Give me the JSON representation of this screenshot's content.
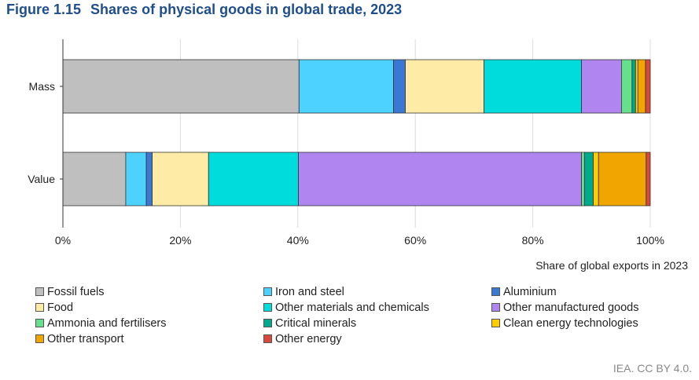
{
  "figure": {
    "number": "Figure 1.15",
    "title": "Shares of physical goods in global trade, 2023",
    "source": "IEA. CC BY 4.0."
  },
  "chart_data": {
    "type": "bar",
    "orientation": "horizontal",
    "stacked": true,
    "categories": [
      "Mass",
      "Value"
    ],
    "xlabel": "Share of global exports in 2023",
    "xlim": [
      0,
      100
    ],
    "xticks": [
      "0%",
      "20%",
      "40%",
      "60%",
      "80%",
      "100%"
    ],
    "grid": true,
    "legend_position": "bottom",
    "series": [
      {
        "name": "Fossil fuels",
        "color": "#bfbfbf",
        "values": [
          40.2,
          10.7
        ]
      },
      {
        "name": "Iron and steel",
        "color": "#4dd2ff",
        "values": [
          16.1,
          3.5
        ]
      },
      {
        "name": "Aluminium",
        "color": "#3a78d4",
        "values": [
          2.0,
          1.0
        ]
      },
      {
        "name": "Food",
        "color": "#fdeba6",
        "values": [
          13.4,
          9.6
        ]
      },
      {
        "name": "Other materials and chemicals",
        "color": "#00dcdc",
        "values": [
          16.6,
          15.3
        ]
      },
      {
        "name": "Other manufactured goods",
        "color": "#b085f0",
        "values": [
          6.8,
          48.2
        ]
      },
      {
        "name": "Ammonia and fertilisers",
        "color": "#66e08c",
        "values": [
          1.8,
          0.5
        ]
      },
      {
        "name": "Critical minerals",
        "color": "#00a88e",
        "values": [
          0.6,
          1.5
        ]
      },
      {
        "name": "Clean energy technologies",
        "color": "#ffcc00",
        "values": [
          0.4,
          0.9
        ]
      },
      {
        "name": "Other transport",
        "color": "#f0a500",
        "values": [
          1.3,
          8.1
        ]
      },
      {
        "name": "Other energy",
        "color": "#d9483b",
        "values": [
          0.8,
          0.7
        ]
      }
    ]
  }
}
